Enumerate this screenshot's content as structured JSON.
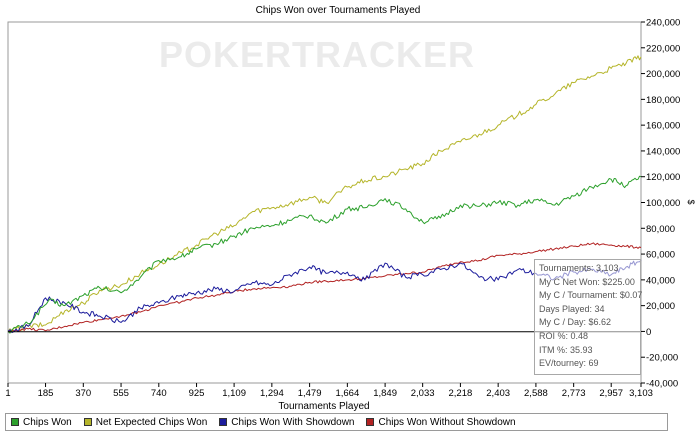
{
  "chart_data": {
    "type": "line",
    "title": "Chips Won over Tournaments Played",
    "xlabel": "Tournaments Played",
    "ylabel": "$",
    "xlim": [
      1,
      3103
    ],
    "ylim": [
      -40000,
      240000
    ],
    "x_ticks": [
      1,
      185,
      370,
      555,
      740,
      925,
      1109,
      1294,
      1479,
      1664,
      1849,
      2033,
      2218,
      2403,
      2588,
      2773,
      2957,
      3103
    ],
    "x_tick_labels": [
      "1",
      "185",
      "370",
      "555",
      "740",
      "925",
      "1,109",
      "1,294",
      "1,479",
      "1,664",
      "1,849",
      "2,033",
      "2,218",
      "2,403",
      "2,588",
      "2,773",
      "2,957",
      "3,103"
    ],
    "y_ticks": [
      -40000,
      -20000,
      0,
      20000,
      40000,
      60000,
      80000,
      100000,
      120000,
      140000,
      160000,
      180000,
      200000,
      220000,
      240000
    ],
    "y_tick_labels": [
      "-40,000",
      "-20,000",
      "0",
      "20,000",
      "40,000",
      "60,000",
      "80,000",
      "100,000",
      "120,000",
      "140,000",
      "160,000",
      "180,000",
      "200,000",
      "220,000",
      "240,000"
    ],
    "grid": false,
    "series": [
      {
        "name": "Chips Won",
        "color": "#2ca02c",
        "x": [
          1,
          100,
          200,
          280,
          370,
          450,
          555,
          650,
          740,
          850,
          925,
          1020,
          1109,
          1200,
          1294,
          1380,
          1479,
          1560,
          1664,
          1750,
          1849,
          1950,
          2033,
          2120,
          2218,
          2310,
          2403,
          2500,
          2588,
          2680,
          2773,
          2860,
          2957,
          3030,
          3103
        ],
        "y": [
          0,
          6000,
          24000,
          20000,
          28000,
          34000,
          30000,
          42000,
          55000,
          58000,
          64000,
          68000,
          74000,
          80000,
          82000,
          86000,
          90000,
          84000,
          95000,
          96000,
          103000,
          95000,
          85000,
          88000,
          98000,
          97000,
          100000,
          98000,
          102000,
          98000,
          105000,
          112000,
          118000,
          113000,
          120000
        ]
      },
      {
        "name": "Net Expected Chips Won",
        "color": "#b5b52a",
        "x": [
          1,
          100,
          185,
          280,
          370,
          450,
          555,
          650,
          740,
          850,
          925,
          1020,
          1109,
          1200,
          1294,
          1380,
          1479,
          1560,
          1664,
          1750,
          1849,
          1950,
          2033,
          2120,
          2218,
          2310,
          2403,
          2500,
          2588,
          2680,
          2773,
          2860,
          2957,
          3030,
          3103
        ],
        "y": [
          0,
          4000,
          5000,
          16000,
          22000,
          32000,
          36000,
          45000,
          52000,
          61000,
          67000,
          76000,
          82000,
          93000,
          96000,
          99000,
          104000,
          100000,
          112000,
          117000,
          120000,
          126000,
          130000,
          140000,
          147000,
          153000,
          160000,
          168000,
          176000,
          184000,
          193000,
          198000,
          204000,
          208000,
          213000
        ]
      },
      {
        "name": "Chips Won With Showdown",
        "color": "#1c1c9c",
        "x": [
          1,
          100,
          185,
          280,
          370,
          450,
          555,
          650,
          740,
          850,
          925,
          1020,
          1109,
          1200,
          1294,
          1380,
          1479,
          1560,
          1664,
          1750,
          1849,
          1950,
          2033,
          2120,
          2218,
          2310,
          2403,
          2500,
          2588,
          2680,
          2773,
          2860,
          2957,
          3030,
          3103
        ],
        "y": [
          0,
          4000,
          26000,
          22000,
          15000,
          12000,
          7000,
          18000,
          22000,
          28000,
          30000,
          33000,
          31000,
          38000,
          36000,
          44000,
          50000,
          45000,
          46000,
          40000,
          53000,
          42000,
          44000,
          48000,
          53000,
          42000,
          40000,
          48000,
          45000,
          41000,
          46000,
          48000,
          44000,
          50000,
          55000
        ]
      },
      {
        "name": "Chips Won Without Showdown",
        "color": "#b22222",
        "x": [
          1,
          100,
          185,
          280,
          370,
          450,
          555,
          650,
          740,
          850,
          925,
          1020,
          1109,
          1200,
          1294,
          1380,
          1479,
          1560,
          1664,
          1750,
          1849,
          1950,
          2033,
          2120,
          2218,
          2310,
          2403,
          2500,
          2588,
          2680,
          2773,
          2860,
          2957,
          3030,
          3103
        ],
        "y": [
          0,
          2000,
          500,
          4000,
          7000,
          9000,
          12000,
          15000,
          20000,
          23000,
          26000,
          28000,
          31000,
          33000,
          34000,
          35000,
          38000,
          39000,
          40000,
          41000,
          43000,
          45000,
          46000,
          50000,
          54000,
          55000,
          59000,
          60000,
          62000,
          64000,
          66000,
          68000,
          67000,
          66000,
          65000
        ]
      }
    ]
  },
  "watermark": "POKERTRACKER",
  "legend": {
    "items": [
      {
        "label": "Chips Won",
        "color": "#2ca02c"
      },
      {
        "label": "Net Expected Chips Won",
        "color": "#b5b52a"
      },
      {
        "label": "Chips Won With Showdown",
        "color": "#1c1c9c"
      },
      {
        "label": "Chips Won Without Showdown",
        "color": "#b22222"
      }
    ]
  },
  "stats": {
    "tournaments": "Tournaments: 3,103",
    "net_won": "My C Net Won: $225.00",
    "per_tournament": "My C / Tournament: $0.07",
    "days_played": "Days Played: 34",
    "per_day": "My C / Day: $6.62",
    "roi": "ROI %: 0.48",
    "itm": "ITM %: 35.93",
    "ev": "EV/tourney: 69"
  }
}
